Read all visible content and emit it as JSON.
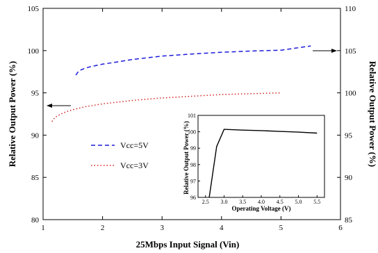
{
  "chart_data": [
    {
      "type": "line",
      "xlabel": "25Mbps Input Signal (Vin)",
      "ylabel_left": "Relative Output Power (%)",
      "ylabel_right": "Relative Output Power (%)",
      "xlim": [
        1,
        6
      ],
      "ylim_left": [
        80,
        105
      ],
      "ylim_right": [
        85,
        110
      ],
      "xticks": [
        1,
        2,
        3,
        4,
        5,
        6
      ],
      "yticks_left": [
        80,
        85,
        90,
        95,
        100,
        105
      ],
      "yticks_right": [
        85,
        90,
        95,
        100,
        105,
        110
      ],
      "legend_position": "center-left",
      "grid": false,
      "series": [
        {
          "name": "Vcc=5V",
          "axis": "right",
          "color": "#1a1adc",
          "style": "dashed",
          "x": [
            1.55,
            1.6,
            1.7,
            1.8,
            2.0,
            2.2,
            2.5,
            3.0,
            3.5,
            4.0,
            4.5,
            5.0,
            5.2,
            5.5
          ],
          "y": [
            102.1,
            102.6,
            102.9,
            103.1,
            103.4,
            103.6,
            103.95,
            104.35,
            104.6,
            104.8,
            104.95,
            105.05,
            105.25,
            105.55
          ]
        },
        {
          "name": "Vcc=3V",
          "axis": "left",
          "color": "#d42020",
          "style": "dotted",
          "x": [
            1.15,
            1.2,
            1.3,
            1.4,
            1.5,
            1.7,
            2.0,
            2.5,
            3.0,
            3.5,
            4.0,
            4.5,
            5.0
          ],
          "y": [
            91.6,
            92.1,
            92.5,
            92.8,
            93.0,
            93.35,
            93.7,
            94.1,
            94.4,
            94.6,
            94.8,
            94.9,
            95.0
          ]
        }
      ],
      "annotations": [
        {
          "type": "arrow",
          "direction": "left",
          "axis": "left"
        },
        {
          "type": "arrow",
          "direction": "right",
          "axis": "right"
        }
      ]
    },
    {
      "type": "line",
      "inset": true,
      "xlabel": "Operating Voltage (V)",
      "ylabel": "Relative Output Power (%)",
      "xlim": [
        2.3,
        5.7
      ],
      "ylim": [
        96,
        101
      ],
      "xticks": [
        "2.5",
        "3.0",
        "3.5",
        "4.0",
        "4.5",
        "5.0",
        "5.5"
      ],
      "yticks": [
        "96",
        "97",
        "98",
        "99",
        "100",
        "101"
      ],
      "series": [
        {
          "color": "#000000",
          "x": [
            2.6,
            2.8,
            3.0,
            3.5,
            4.0,
            4.5,
            5.0,
            5.5
          ],
          "y": [
            96.0,
            99.1,
            100.15,
            100.1,
            100.07,
            100.02,
            99.98,
            99.92
          ]
        }
      ]
    }
  ]
}
